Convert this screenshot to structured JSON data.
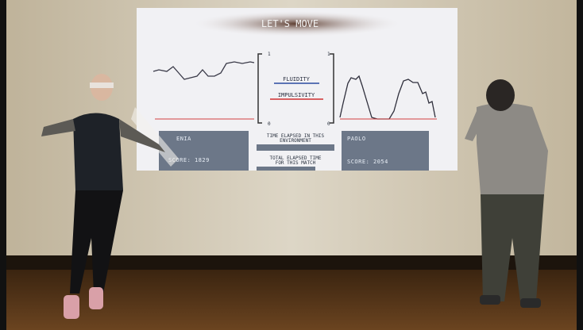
{
  "screen": {
    "title": "LET'S MOVE",
    "meters": [
      {
        "max": 1,
        "min": 0
      },
      {
        "max": 1,
        "min": 0
      }
    ],
    "qualities": [
      "FLUIDITY",
      "IMPULSIVITY"
    ],
    "timers": [
      [
        "TIME ELAPSED IN THIS",
        "ENVIRONMENT"
      ],
      [
        "TOTAL ELAPSED TIME",
        "FOR THIS MATCH"
      ]
    ],
    "players": [
      {
        "name": "ENIA",
        "score": "SCORE: 1829"
      },
      {
        "name": "PAOLO",
        "score": "SCORE: 2054"
      }
    ]
  }
}
